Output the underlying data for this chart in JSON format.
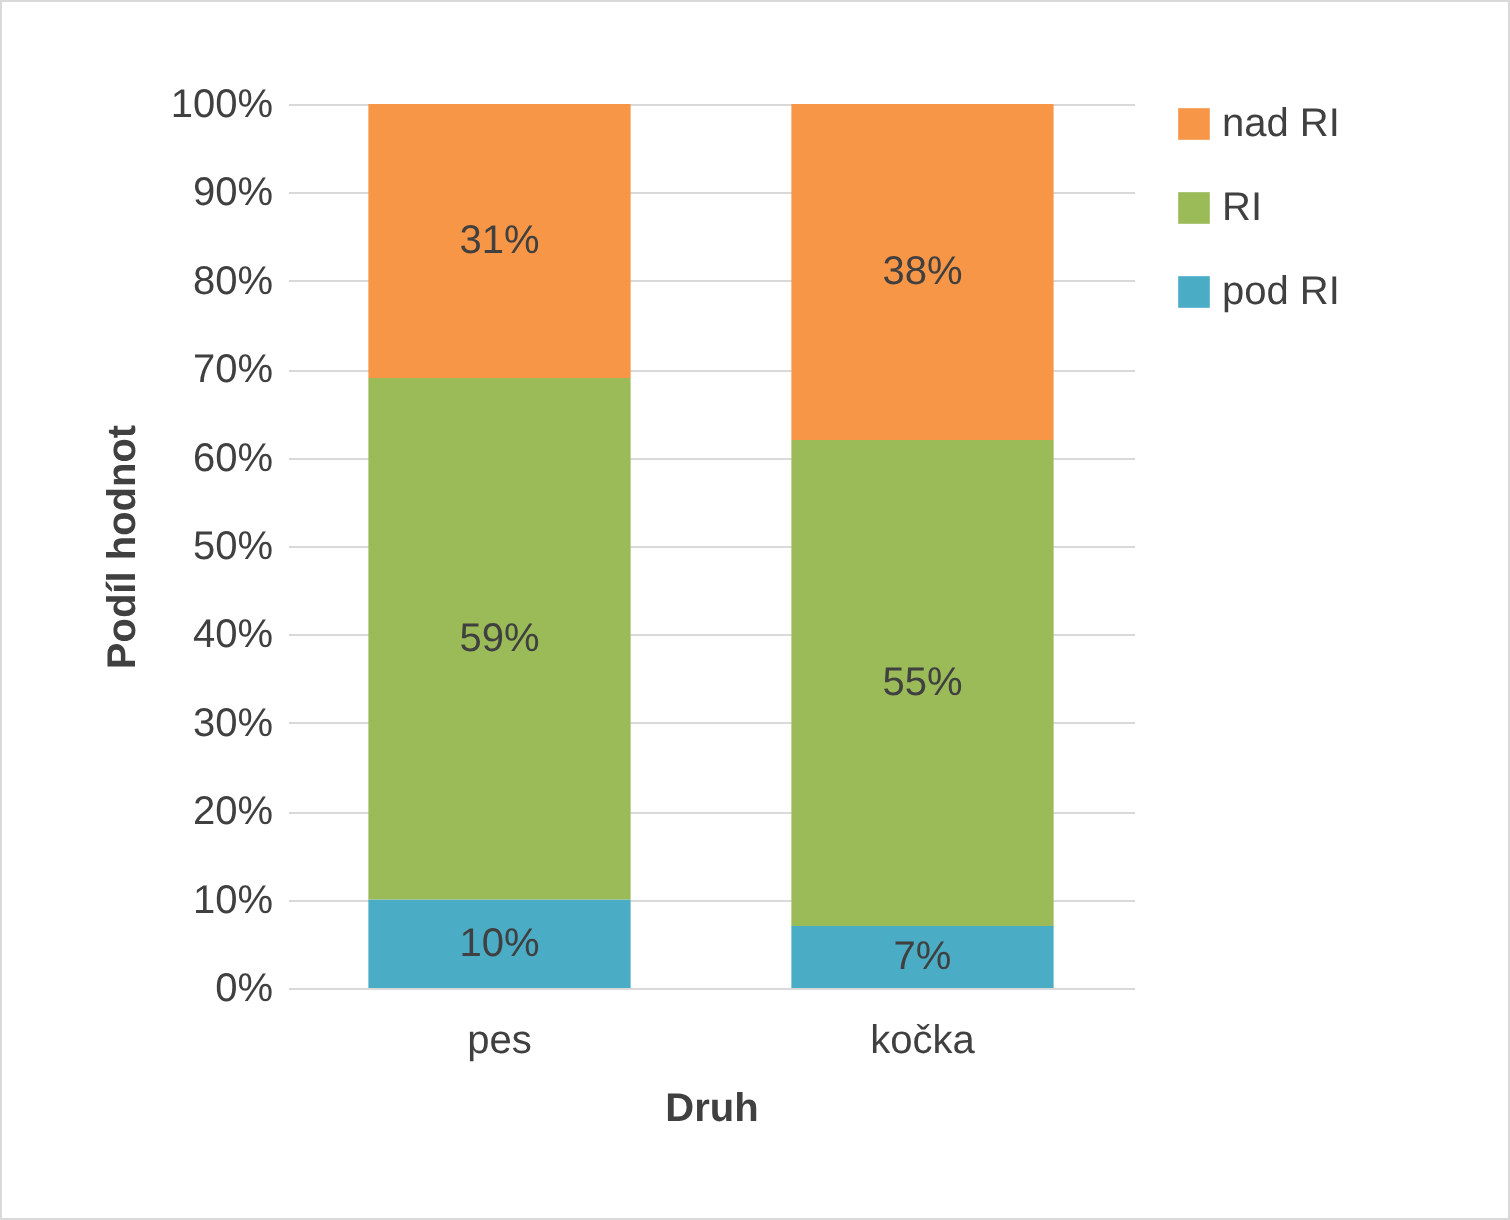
{
  "chart_data": {
    "type": "bar",
    "stacked": true,
    "xlabel": "Druh",
    "ylabel": "Podíl hodnot",
    "categories": [
      "pes",
      "kočka"
    ],
    "series": [
      {
        "name": "pod RI",
        "color": "#4bacc6",
        "values": [
          10,
          7
        ],
        "value_labels": [
          "10%",
          "7%"
        ]
      },
      {
        "name": "RI",
        "color": "#9bbb59",
        "values": [
          59,
          55
        ],
        "value_labels": [
          "59%",
          "55%"
        ]
      },
      {
        "name": "nad RI",
        "color": "#f79646",
        "values": [
          31,
          38
        ],
        "value_labels": [
          "31%",
          "38%"
        ]
      }
    ],
    "ylim": [
      0,
      100
    ],
    "yticks": [
      {
        "value": 0,
        "label": "0%"
      },
      {
        "value": 10,
        "label": "10%"
      },
      {
        "value": 20,
        "label": "20%"
      },
      {
        "value": 30,
        "label": "30%"
      },
      {
        "value": 40,
        "label": "40%"
      },
      {
        "value": 50,
        "label": "50%"
      },
      {
        "value": 60,
        "label": "60%"
      },
      {
        "value": 70,
        "label": "70%"
      },
      {
        "value": 80,
        "label": "80%"
      },
      {
        "value": 90,
        "label": "90%"
      },
      {
        "value": 100,
        "label": "100%"
      }
    ],
    "grid": "y",
    "legend": "right"
  }
}
